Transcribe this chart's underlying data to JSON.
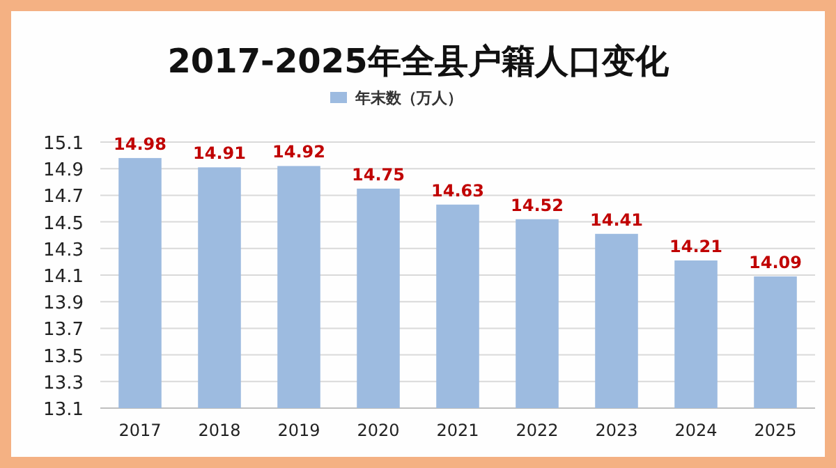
{
  "chart_data": {
    "type": "bar",
    "title": "2017-2025年全县户籍人口变化",
    "categories": [
      "2017",
      "2018",
      "2019",
      "2020",
      "2021",
      "2022",
      "2023",
      "2024",
      "2025"
    ],
    "series": [
      {
        "name": "年末数（万人）",
        "color": "#9dbbe0",
        "values": [
          14.98,
          14.91,
          14.92,
          14.75,
          14.63,
          14.52,
          14.41,
          14.21,
          14.09
        ]
      }
    ],
    "ylim": [
      13.1,
      15.1
    ],
    "yticks": [
      13.1,
      13.3,
      13.5,
      13.7,
      13.9,
      14.1,
      14.3,
      14.5,
      14.7,
      14.9,
      15.1
    ],
    "grid": "y",
    "legend": "top",
    "data_labels": true
  }
}
